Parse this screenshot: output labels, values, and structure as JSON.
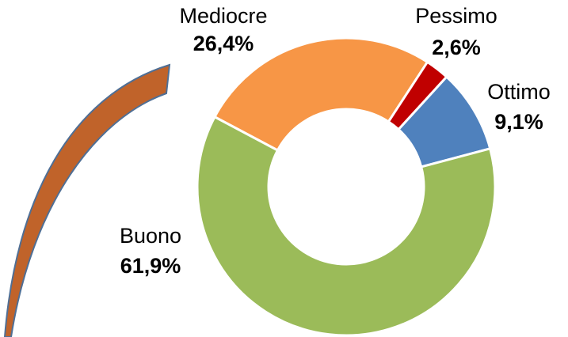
{
  "chart_data": {
    "type": "donut",
    "categories": [
      "Mediocre",
      "Pessimo",
      "Ottimo",
      "Buono"
    ],
    "values": [
      26.4,
      2.6,
      9.1,
      61.9
    ],
    "value_labels": [
      "26,4%",
      "2,6%",
      "9,1%",
      "61,9%"
    ],
    "colors": [
      "#f79646",
      "#c00000",
      "#4f81bd",
      "#9bbb59"
    ]
  }
}
